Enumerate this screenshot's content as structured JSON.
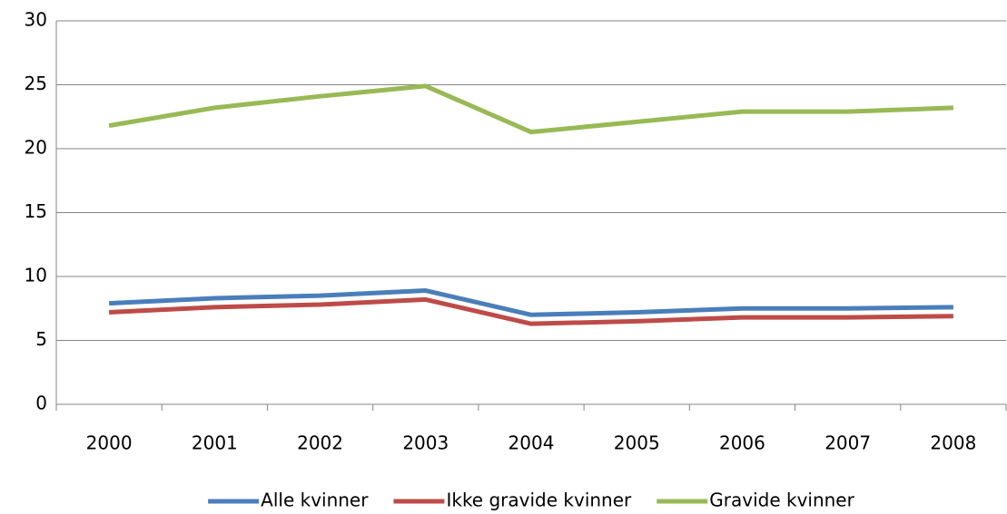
{
  "chart_data": {
    "type": "line",
    "categories": [
      "2000",
      "2001",
      "2002",
      "2003",
      "2004",
      "2005",
      "2006",
      "2007",
      "2008"
    ],
    "series": [
      {
        "name": "Alle kvinner",
        "color": "#4a7ebb",
        "values": [
          7.9,
          8.3,
          8.5,
          8.9,
          7.0,
          7.2,
          7.5,
          7.5,
          7.6
        ]
      },
      {
        "name": "Ikke gravide kvinner",
        "color": "#be4b48",
        "values": [
          7.2,
          7.6,
          7.8,
          8.2,
          6.3,
          6.5,
          6.8,
          6.8,
          6.9
        ]
      },
      {
        "name": "Gravide kvinner",
        "color": "#98b954",
        "values": [
          21.8,
          23.2,
          24.1,
          24.9,
          21.3,
          22.1,
          22.9,
          22.9,
          23.2
        ]
      }
    ],
    "ylim": [
      0,
      30
    ],
    "yticks": [
      0,
      5,
      10,
      15,
      20,
      25,
      30
    ],
    "grid": true,
    "legend": "bottom"
  }
}
